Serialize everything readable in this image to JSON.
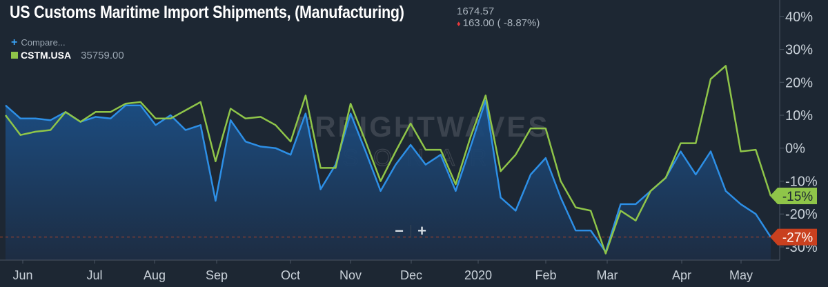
{
  "header": {
    "title": "US Customs Maritime Import Shipments, (Manufacturing)",
    "price": "1674.57",
    "change": "163.00 ( -8.87%)",
    "compare_label": "Compare...",
    "series_ticker": "CSTM.USA",
    "series_value": "35759.00"
  },
  "watermark": {
    "line1": "FREIGHTWAVES",
    "line2": "SONAR"
  },
  "zoom": {
    "minus": "−",
    "plus": "+"
  },
  "colors": {
    "background": "#1d2733",
    "green_series": "#8fc549",
    "blue_series": "#2d8fe6",
    "negative_badge": "#c9401f"
  },
  "chart_data": {
    "type": "line",
    "x_ticks": [
      "Jun",
      "Jul",
      "Aug",
      "Sep",
      "Oct",
      "Nov",
      "Dec",
      "2020",
      "Feb",
      "Mar",
      "Apr",
      "May"
    ],
    "y_ticks": [
      "40%",
      "30%",
      "20%",
      "10%",
      "0%",
      "-10%",
      "-20%",
      "-30%"
    ],
    "ylim": [
      -34,
      45
    ],
    "grid": false,
    "series": [
      {
        "name": "CSTM.USA",
        "color": "#8fc549",
        "last_label": "-15%",
        "values": [
          10,
          4,
          5,
          5.5,
          11,
          8,
          11,
          11,
          13.5,
          14,
          9,
          9,
          11.5,
          14,
          -4,
          12,
          9,
          9.5,
          7,
          2,
          16,
          -6,
          -6,
          13.5,
          2,
          -10,
          -1,
          7.5,
          -0.5,
          -0.5,
          -11,
          3.5,
          16,
          -7,
          -2,
          6,
          6,
          -10,
          -18,
          -19,
          -32,
          -19,
          -22,
          -13,
          -9,
          1.5,
          1.5,
          21,
          25,
          -1,
          -0.5,
          -14.5
        ]
      },
      {
        "name": "",
        "color": "#2d8fe6",
        "last_label": "-27%",
        "values": [
          13,
          9,
          9,
          8.5,
          11,
          8,
          9.5,
          9,
          13,
          13,
          7,
          10,
          5.5,
          7,
          -16,
          8.5,
          2,
          0.5,
          0,
          -2,
          10.5,
          -12.5,
          -5,
          10.5,
          -1,
          -13,
          -5,
          1,
          -5,
          -2,
          -13,
          0.5,
          14.5,
          -15,
          -19,
          -8,
          -3,
          -15,
          -25,
          -25,
          -31.5,
          -17,
          -17,
          -13,
          -9,
          -1,
          -8,
          -1,
          -13,
          -17,
          -20,
          -27
        ]
      }
    ]
  }
}
